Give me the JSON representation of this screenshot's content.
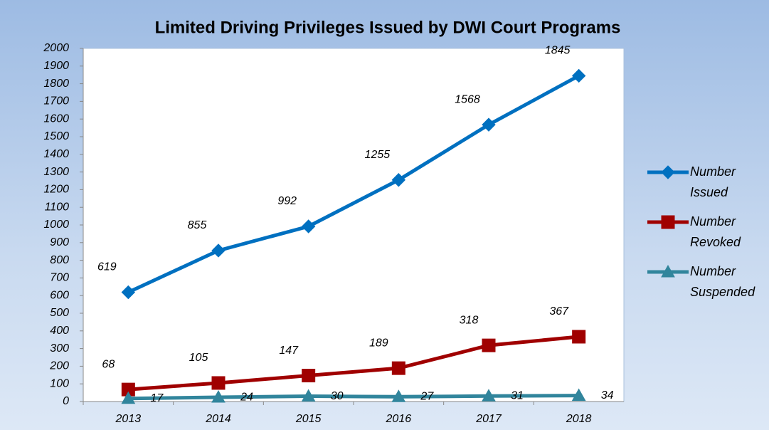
{
  "chart_data": {
    "type": "line",
    "title": "Limited Driving Privileges Issued by DWI Court Programs",
    "categories": [
      "2013",
      "2014",
      "2015",
      "2016",
      "2017",
      "2018"
    ],
    "series": [
      {
        "name": "Number Issued",
        "color": "#0070c0",
        "marker": "diamond",
        "values": [
          619,
          855,
          992,
          1255,
          1568,
          1845
        ]
      },
      {
        "name": "Number Revoked",
        "color": "#a00000",
        "marker": "square",
        "values": [
          68,
          105,
          147,
          189,
          318,
          367
        ]
      },
      {
        "name": "Number Suspended",
        "color": "#31859c",
        "marker": "triangle",
        "values": [
          17,
          24,
          30,
          27,
          31,
          34
        ]
      }
    ],
    "ylim": [
      0,
      2000
    ],
    "yticks": [
      0,
      100,
      200,
      300,
      400,
      500,
      600,
      700,
      800,
      900,
      1000,
      1100,
      1200,
      1300,
      1400,
      1500,
      1600,
      1700,
      1800,
      1900,
      2000
    ],
    "grid": false,
    "legend": "right"
  }
}
